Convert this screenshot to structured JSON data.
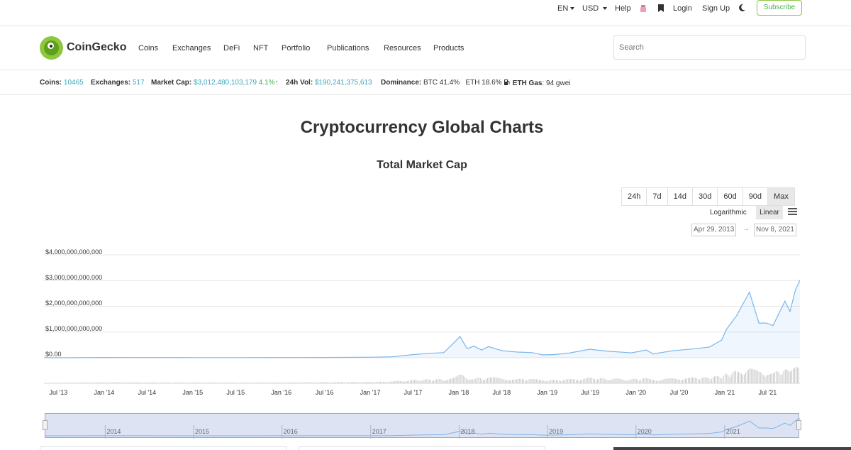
{
  "topbar": {
    "lang": "EN",
    "currency": "USD",
    "help": "Help",
    "login": "Login",
    "signup": "Sign Up",
    "subscribe": "Subscribe"
  },
  "nav": {
    "brand": "CoinGecko",
    "items": [
      "Coins",
      "Exchanges",
      "DeFi",
      "NFT",
      "Portfolio",
      "Publications",
      "Resources",
      "Products"
    ],
    "search_placeholder": "Search"
  },
  "stats": {
    "coins_label": "Coins:",
    "coins_value": "10465",
    "exchanges_label": "Exchanges:",
    "exchanges_value": "517",
    "marketcap_label": "Market Cap:",
    "marketcap_value": "$3,012,480,103,179",
    "marketcap_change": "4.1%",
    "vol_label": "24h Vol:",
    "vol_value": "$190,241,375,613",
    "dominance_label": "Dominance:",
    "dominance_btc": "BTC 41.4%",
    "dominance_eth": "ETH 18.6%",
    "gas_label": "ETH Gas",
    "gas_value": ": 94 gwei"
  },
  "page_title": "Cryptocurrency Global Charts",
  "chart_title": "Total Market Cap",
  "ranges": [
    "24h",
    "7d",
    "14d",
    "30d",
    "60d",
    "90d",
    "Max"
  ],
  "active_range": "Max",
  "scale": {
    "log": "Logarithmic",
    "linear": "Linear",
    "active": "Linear"
  },
  "date_from": "Apr 29, 2013",
  "date_to": "Nov 8, 2021",
  "date_arrow": "→",
  "colors": {
    "line": "#7cb5ec",
    "accent": "#8dc63f",
    "teal": "#3ba7bd",
    "navigator": "#dde3f2"
  },
  "chart_data": {
    "type": "area",
    "title": "Total Market Cap",
    "y_tick_labels": [
      "$4,000,000,000,000",
      "$3,000,000,000,000",
      "$2,000,000,000,000",
      "$1,000,000,000,000",
      "$0.00"
    ],
    "x_tick_labels": [
      "Jul '13",
      "Jan '14",
      "Jul '14",
      "Jan '15",
      "Jul '15",
      "Jan '16",
      "Jul '16",
      "Jan '17",
      "Jul '17",
      "Jan '18",
      "Jul '18",
      "Jan '19",
      "Jul '19",
      "Jan '20",
      "Jul '20",
      "Jan '21",
      "Jul '21"
    ],
    "navigator_labels": [
      "2014",
      "2015",
      "2016",
      "2017",
      "2018",
      "2019",
      "2020",
      "2021"
    ],
    "ylim": [
      0,
      4000000000000
    ],
    "grid": true,
    "series": [
      {
        "values_unit": "USD",
        "x": [
          "2013-04-29",
          "2013-07-01",
          "2014-01-01",
          "2014-07-01",
          "2015-01-01",
          "2015-07-01",
          "2016-01-01",
          "2016-07-01",
          "2017-01-01",
          "2017-04-01",
          "2017-06-15",
          "2017-09-01",
          "2017-11-01",
          "2017-12-15",
          "2018-01-07",
          "2018-02-06",
          "2018-03-05",
          "2018-04-06",
          "2018-05-05",
          "2018-07-01",
          "2018-09-01",
          "2018-11-01",
          "2018-12-15",
          "2019-02-01",
          "2019-04-01",
          "2019-06-26",
          "2019-09-01",
          "2019-12-15",
          "2020-02-14",
          "2020-03-13",
          "2020-06-01",
          "2020-09-01",
          "2020-11-01",
          "2020-12-20",
          "2021-01-09",
          "2021-02-21",
          "2021-04-14",
          "2021-05-23",
          "2021-06-22",
          "2021-07-20",
          "2021-09-07",
          "2021-09-28",
          "2021-10-21",
          "2021-11-08"
        ],
        "values": [
          1500000000,
          1200000000,
          10000000000,
          8500000000,
          5500000000,
          4500000000,
          7000000000,
          12000000000,
          18000000000,
          35000000000,
          110000000000,
          170000000000,
          200000000000,
          600000000000,
          830000000000,
          350000000000,
          450000000000,
          300000000000,
          430000000000,
          270000000000,
          220000000000,
          200000000000,
          110000000000,
          125000000000,
          180000000000,
          330000000000,
          260000000000,
          190000000000,
          300000000000,
          150000000000,
          270000000000,
          350000000000,
          420000000000,
          680000000000,
          1100000000000,
          1650000000000,
          2550000000000,
          1350000000000,
          1350000000000,
          1250000000000,
          2200000000000,
          1800000000000,
          2650000000000,
          3010000000000
        ]
      }
    ]
  }
}
